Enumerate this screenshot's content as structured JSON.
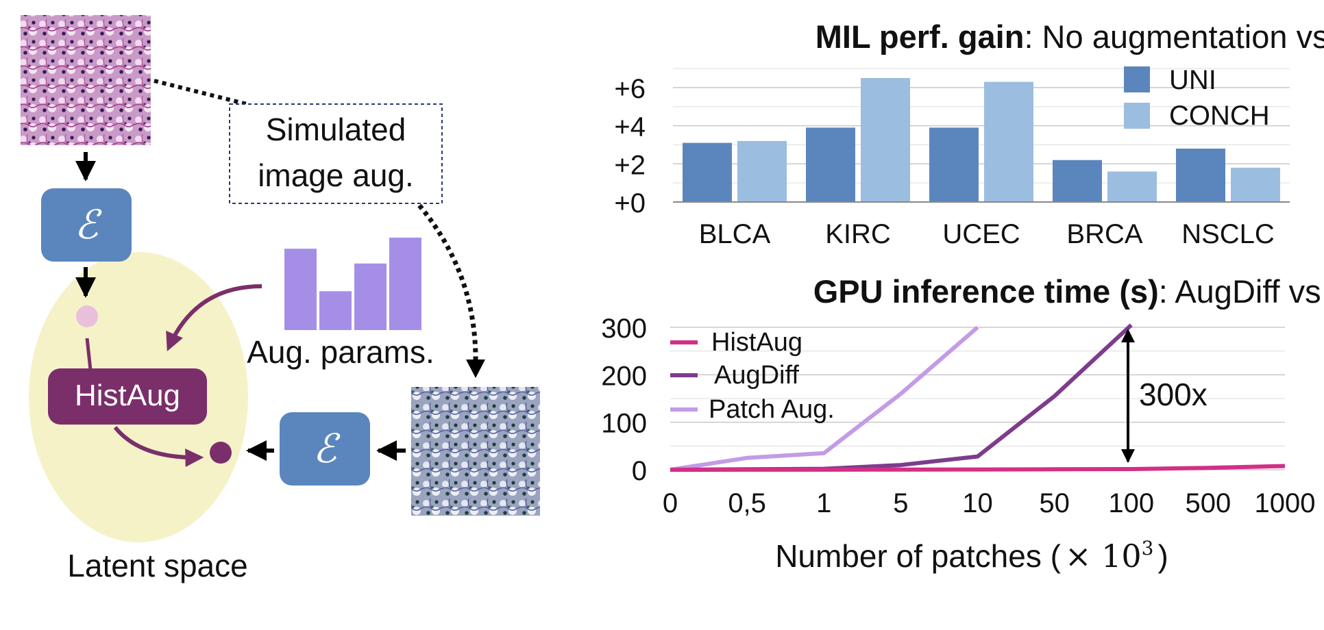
{
  "colors": {
    "uni": "#5b86bd",
    "conch": "#9bbde0",
    "encoder": "#5b86bd",
    "latent": "#f6f2c8",
    "histaug_box": "#7a2f6a",
    "arrow_purple": "#7a2f6a",
    "aug_bars": "#a58fe6",
    "line_histaug": "#d22f86",
    "line_augdiff": "#7e3c8c",
    "line_patch": "#c39be6",
    "grid": "#c8c8c8"
  },
  "diagram": {
    "encoder_symbol": "ℰ",
    "histaug_label": "HistAug",
    "aug_params_label": "Aug. params.",
    "simulated_label_line1": "Simulated",
    "simulated_label_line2": "image aug.",
    "latent_space_label": "Latent space",
    "aug_param_values": [
      0.88,
      0.42,
      0.72,
      1.0
    ]
  },
  "chart_data": [
    {
      "type": "bar",
      "title_bold": "MIL perf. gain",
      "title_rest": ": No augmentation vs HistAug",
      "categories": [
        "BLCA",
        "KIRC",
        "UCEC",
        "BRCA",
        "NSCLC"
      ],
      "series": [
        {
          "name": "UNI",
          "values": [
            3.1,
            3.9,
            3.9,
            2.2,
            2.8
          ]
        },
        {
          "name": "CONCH",
          "values": [
            3.2,
            6.5,
            6.3,
            1.6,
            1.8
          ]
        }
      ],
      "ylim": [
        0,
        7
      ],
      "yticks": [
        0,
        2,
        4,
        6
      ],
      "ytick_labels": [
        "+0",
        "+2",
        "+4",
        "+6"
      ],
      "grid": true,
      "legend": "top-right"
    },
    {
      "type": "line",
      "title_bold": "GPU inference time (s)",
      "title_rest": ": AugDiff vs HistAug",
      "x": [
        "0",
        "0,5",
        "1",
        "5",
        "10",
        "50",
        "100",
        "500",
        "1000"
      ],
      "xlabel": "Number of patches (",
      "xlabel_math": "× 10",
      "xlabel_exp": "3",
      "xlabel_close": ")",
      "ylim": [
        0,
        300
      ],
      "yticks": [
        0,
        100,
        200,
        300
      ],
      "ytick_labels": [
        "0",
        "100",
        "200",
        "300"
      ],
      "series": [
        {
          "name": "HistAug",
          "values": [
            0,
            0.1,
            0.2,
            0.4,
            0.6,
            1,
            1.5,
            4,
            8
          ]
        },
        {
          "name": "AugDiff",
          "values": [
            0,
            1,
            2,
            10,
            28,
            155,
            305,
            null,
            null
          ]
        },
        {
          "name": "Patch Aug.",
          "values": [
            0,
            25,
            35,
            160,
            300,
            null,
            null,
            null,
            null
          ]
        }
      ],
      "annotation": "300x",
      "grid": true,
      "legend": "top-left"
    }
  ]
}
